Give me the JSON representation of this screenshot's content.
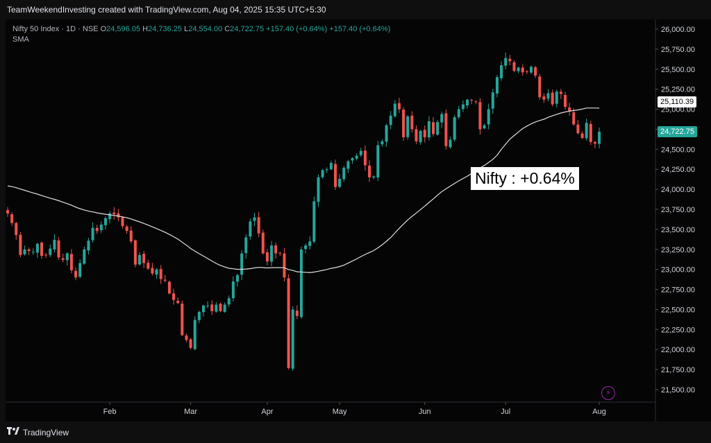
{
  "header": {
    "title": "TeamWeekendInvesting created with TradingView.com, Aug 04, 2025 15:35 UTC+5:30"
  },
  "legend": {
    "symbol": "Nifty 50 Index · 1D · NSE",
    "o_label": "O",
    "o_value": "24,596.05",
    "h_label": "H",
    "h_value": "24,736.25",
    "l_label": "L",
    "l_value": "24,554.00",
    "c_label": "C",
    "c_value": "24,722.75",
    "change": "+157.40 (+0.64%)",
    "change2": "+157.40 (+0.64%)",
    "indicator": "SMA"
  },
  "annotation": {
    "text": "Nifty : +0.64%"
  },
  "price_labels": {
    "sma": "25,110.39",
    "last": "24,722.75"
  },
  "footer": {
    "brand": "TradingView"
  },
  "colors": {
    "up": "#26a69a",
    "down": "#ef5350",
    "sma": "#e0e0e0",
    "axis_text": "#d1d4dc",
    "last_tag": "#26a69a",
    "accent": "#9c27b0"
  },
  "icons": {
    "brand": "tradingview-logo-icon",
    "alert": "lightning-icon"
  },
  "chart_data": {
    "type": "candlestick",
    "ylim": [
      21330,
      26150
    ],
    "y_ticks": [
      21500,
      21750,
      22000,
      22250,
      22500,
      22750,
      23000,
      23250,
      23500,
      23750,
      24000,
      24250,
      24500,
      24750,
      25000,
      25250,
      25500,
      25750,
      26000
    ],
    "y_tick_labels": [
      "21,500.00",
      "21,750.00",
      "22,000.00",
      "22,250.00",
      "22,500.00",
      "22,750.00",
      "23,000.00",
      "23,250.00",
      "23,500.00",
      "23,750.00",
      "24,000.00",
      "24,250.00",
      "24,500.00",
      "24,750.00",
      "25,000.00",
      "25,250.00",
      "25,500.00",
      "25,750.00",
      "26,000.00"
    ],
    "x_labels": [
      {
        "label": "Feb",
        "index": 24
      },
      {
        "label": "Mar",
        "index": 43
      },
      {
        "label": "Apr",
        "index": 61
      },
      {
        "label": "May",
        "index": 78
      },
      {
        "label": "Jun",
        "index": 98
      },
      {
        "label": "Jul",
        "index": 117
      },
      {
        "label": "Aug",
        "index": 139
      }
    ],
    "sma_period": 50,
    "series": [
      {
        "name": "Nifty 50 Index",
        "closes": [
          23700,
          23580,
          23430,
          23180,
          23250,
          23230,
          23220,
          23320,
          23170,
          23180,
          23260,
          23370,
          23150,
          23120,
          23200,
          22990,
          22900,
          23080,
          23250,
          23360,
          23520,
          23480,
          23560,
          23640,
          23700,
          23690,
          23650,
          23540,
          23480,
          23350,
          23060,
          23180,
          23080,
          23010,
          22950,
          23000,
          22880,
          22860,
          22700,
          22620,
          22580,
          22180,
          22120,
          22020,
          22370,
          22470,
          22550,
          22550,
          22480,
          22560,
          22480,
          22560,
          22640,
          22850,
          22930,
          23200,
          23400,
          23600,
          23650,
          23450,
          23200,
          23100,
          23300,
          23200,
          23200,
          22900,
          21770,
          22500,
          22420,
          23250,
          23300,
          23350,
          23850,
          24150,
          24240,
          24250,
          24330,
          24030,
          24130,
          24270,
          24350,
          24390,
          24420,
          24480,
          24300,
          24150,
          24160,
          24550,
          24600,
          24800,
          24920,
          25070,
          25000,
          24650,
          24910,
          24750,
          24600,
          24730,
          24650,
          24850,
          24690,
          24840,
          24940,
          24540,
          24620,
          24900,
          25000,
          25060,
          25120,
          25110,
          25090,
          24750,
          24800,
          25000,
          25210,
          25400,
          25550,
          25640,
          25600,
          25480,
          25520,
          25460,
          25470,
          25530,
          25420,
          25150,
          25120,
          25200,
          25060,
          25220,
          25190,
          25030,
          24970,
          24810,
          24700,
          24640,
          24830,
          24590,
          24570,
          24720
        ]
      }
    ],
    "sma_values_visible": true,
    "title": "",
    "xlabel": "",
    "ylabel": ""
  }
}
